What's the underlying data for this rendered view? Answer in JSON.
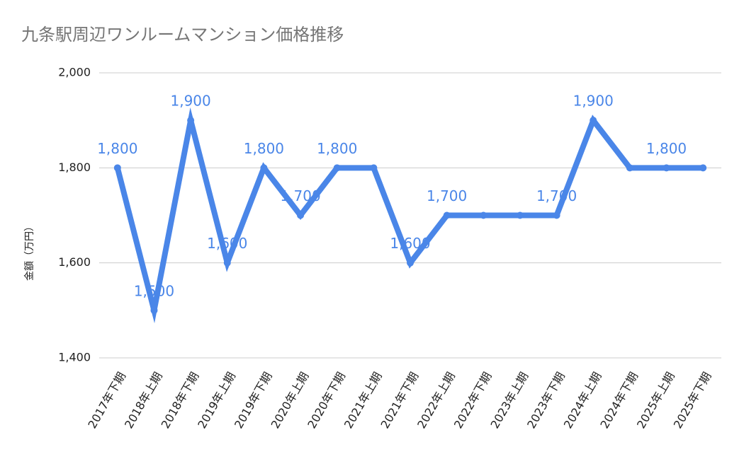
{
  "chart_data": {
    "type": "line",
    "title": "九条駅周辺ワンルームマンション価格推移",
    "y_label": "金額（万円）",
    "categories": [
      "2017年下期",
      "2018年上期",
      "2018年下期",
      "2019年上期",
      "2019年下期",
      "2020年上期",
      "2020年下期",
      "2021年上期",
      "2021年下期",
      "2022年上期",
      "2022年下期",
      "2023年上期",
      "2023年下期",
      "2024年上期",
      "2024年下期",
      "2025年上期",
      "2025年下期"
    ],
    "series": [
      {
        "name": "金額",
        "color": "#4a86e8",
        "values": [
          1800,
          1500,
          1900,
          1600,
          1800,
          1700,
          1800,
          1800,
          1600,
          1700,
          1700,
          1700,
          1700,
          1900,
          1800,
          1800,
          1800
        ],
        "value_labels": [
          "1,800",
          "1,500",
          "1,900",
          "1,600",
          "1,800",
          "1,700",
          "1,800",
          null,
          "1,600",
          "1,700",
          null,
          null,
          "1,700",
          "1,900",
          null,
          "1,800",
          null
        ]
      }
    ],
    "ylim": [
      1400,
      2000
    ],
    "yticks": [
      {
        "value": 1400,
        "label": "1,400"
      },
      {
        "value": 1600,
        "label": "1,600"
      },
      {
        "value": 1800,
        "label": "1,800"
      },
      {
        "value": 2000,
        "label": "2,000"
      }
    ],
    "grid": true
  }
}
